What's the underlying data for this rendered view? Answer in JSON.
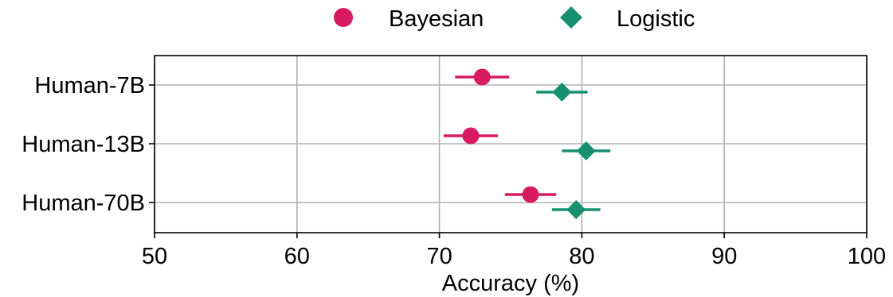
{
  "chart_data": {
    "type": "scatter",
    "subtype": "dot-plot-with-error-bars",
    "categories": [
      "Human-7B",
      "Human-13B",
      "Human-70B"
    ],
    "series": [
      {
        "name": "Bayesian",
        "marker": "circle",
        "color": "#d81b60",
        "values": [
          73.0,
          72.2,
          76.4
        ],
        "err_low": [
          71.1,
          70.3,
          74.6
        ],
        "err_high": [
          74.9,
          74.1,
          78.2
        ]
      },
      {
        "name": "Logistic",
        "marker": "diamond",
        "color": "#16906e",
        "values": [
          78.6,
          80.3,
          79.6
        ],
        "err_low": [
          76.8,
          78.6,
          77.9
        ],
        "err_high": [
          80.4,
          82.0,
          81.3
        ]
      }
    ],
    "xlabel": "Accuracy (%)",
    "ylabel": "",
    "xlim": [
      50,
      100
    ],
    "xticks": [
      "50",
      "60",
      "70",
      "80",
      "90",
      "100"
    ],
    "grid": true,
    "legend_position": "top-center"
  }
}
